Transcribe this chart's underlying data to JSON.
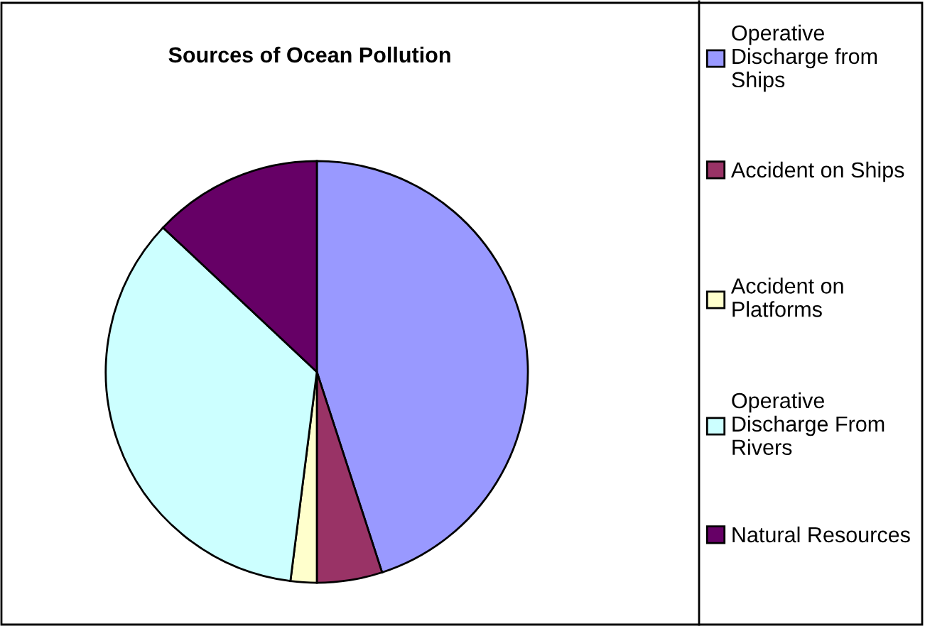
{
  "chart_data": {
    "type": "pie",
    "title": "Sources of Ocean Pollution",
    "categories": [
      "Operative Discharge from Ships",
      "Accident on Ships",
      "Accident on Platforms",
      "Operative Discharge From Rivers",
      "Natural Resources"
    ],
    "values": [
      45,
      5,
      2,
      35,
      13
    ],
    "colors": [
      "#9999ff",
      "#993366",
      "#ffffcc",
      "#ccffff",
      "#660066"
    ],
    "legend": "right"
  }
}
